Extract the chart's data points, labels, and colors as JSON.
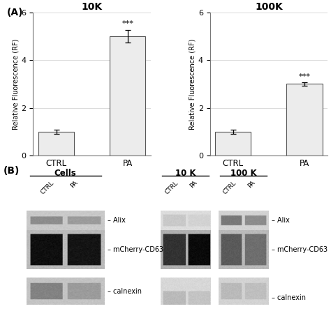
{
  "panel_A": {
    "left_chart": {
      "title": "10K",
      "categories": [
        "CTRL",
        "PA"
      ],
      "values": [
        1.0,
        5.0
      ],
      "errors": [
        0.08,
        0.25
      ],
      "ylabel": "Relative Fluorescence (RF)",
      "ylim": [
        0,
        6
      ],
      "yticks": [
        0,
        2,
        4,
        6
      ],
      "significance": "***",
      "bar_color": "#ececec",
      "bar_edgecolor": "#555555"
    },
    "right_chart": {
      "title": "100K",
      "categories": [
        "CTRL",
        "PA"
      ],
      "values": [
        1.0,
        3.0
      ],
      "errors": [
        0.08,
        0.07
      ],
      "ylabel": "Relative Fluorescence (RF)",
      "ylim": [
        0,
        6
      ],
      "yticks": [
        0,
        2,
        4,
        6
      ],
      "significance": "***",
      "bar_color": "#ececec",
      "bar_edgecolor": "#555555"
    }
  },
  "figure": {
    "panel_A_label": "(A)",
    "panel_B_label": "(B)",
    "bg_color": "#ffffff",
    "text_color": "#000000"
  }
}
